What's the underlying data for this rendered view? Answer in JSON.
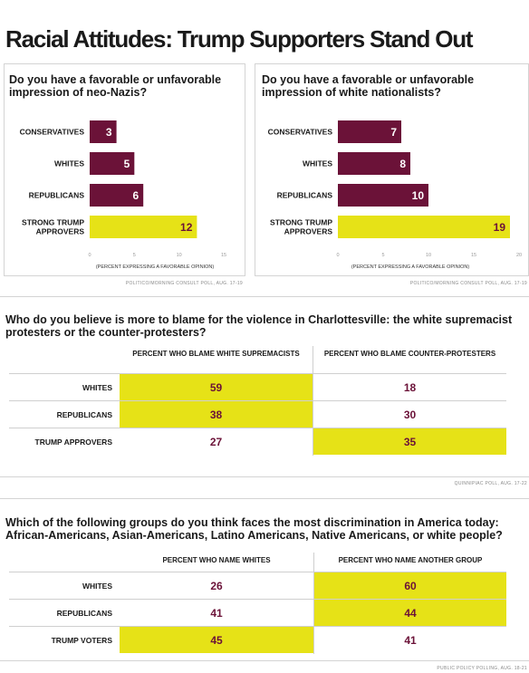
{
  "title": "Racial Attitudes: Trump Supporters Stand Out",
  "colors": {
    "bar": "#6b1238",
    "highlight": "#e6e217",
    "value_text": "#6b1238"
  },
  "chart_data": [
    {
      "type": "bar",
      "orientation": "horizontal",
      "title": "Do you have a favorable or unfavorable impression of neo-Nazis?",
      "categories": [
        "CONSERVATIVES",
        "WHITES",
        "REPUBLICANS",
        "STRONG TRUMP APPROVERS"
      ],
      "values": [
        3,
        5,
        6,
        12
      ],
      "highlighted": [
        false,
        false,
        false,
        true
      ],
      "xlabel": "(PERCENT EXPRESSING A FAVORABLE OPINION)",
      "xlim": [
        0,
        15
      ],
      "xticks": [
        0,
        5,
        10,
        15
      ],
      "source": "POLITICO/MORNING CONSULT POLL, AUG. 17-19"
    },
    {
      "type": "bar",
      "orientation": "horizontal",
      "title": "Do you have a favorable or unfavorable impression of white nationalists?",
      "categories": [
        "CONSERVATIVES",
        "WHITES",
        "REPUBLICANS",
        "STRONG TRUMP APPROVERS"
      ],
      "values": [
        7,
        8,
        10,
        19
      ],
      "highlighted": [
        false,
        false,
        false,
        true
      ],
      "xlabel": "(PERCENT EXPRESSING A FAVORABLE OPINION)",
      "xlim": [
        0,
        20
      ],
      "xticks": [
        0,
        5,
        10,
        15,
        20
      ],
      "source": "POLITICO/MORNING CONSULT POLL, AUG. 17-19"
    },
    {
      "type": "table",
      "title": "Who do you believe is more to blame for the violence in Charlottesville: the white supremacist protesters or the counter-protesters?",
      "columns": [
        "PERCENT WHO BLAME WHITE SUPREMACISTS",
        "PERCENT WHO BLAME COUNTER-PROTESTERS"
      ],
      "rows": [
        {
          "label": "WHITES",
          "values": [
            59,
            18
          ],
          "highlighted": [
            true,
            false
          ]
        },
        {
          "label": "REPUBLICANS",
          "values": [
            38,
            30
          ],
          "highlighted": [
            true,
            false
          ]
        },
        {
          "label": "TRUMP APPROVERS",
          "values": [
            27,
            35
          ],
          "highlighted": [
            false,
            true
          ]
        }
      ],
      "source": "QUINNIPIAC POLL, AUG. 17-22"
    },
    {
      "type": "table",
      "title": "Which of the following groups do you think faces the most discrimination in America today: African-Americans, Asian-Americans, Latino Americans, Native Americans, or white people?",
      "columns": [
        "PERCENT WHO NAME WHITES",
        "PERCENT WHO NAME ANOTHER GROUP"
      ],
      "rows": [
        {
          "label": "WHITES",
          "values": [
            26,
            60
          ],
          "highlighted": [
            false,
            true
          ]
        },
        {
          "label": "REPUBLICANS",
          "values": [
            41,
            44
          ],
          "highlighted": [
            false,
            true
          ]
        },
        {
          "label": "TRUMP VOTERS",
          "values": [
            45,
            41
          ],
          "highlighted": [
            true,
            false
          ]
        }
      ],
      "source": "PUBLIC POLICY POLLING, AUG. 18-21"
    }
  ]
}
